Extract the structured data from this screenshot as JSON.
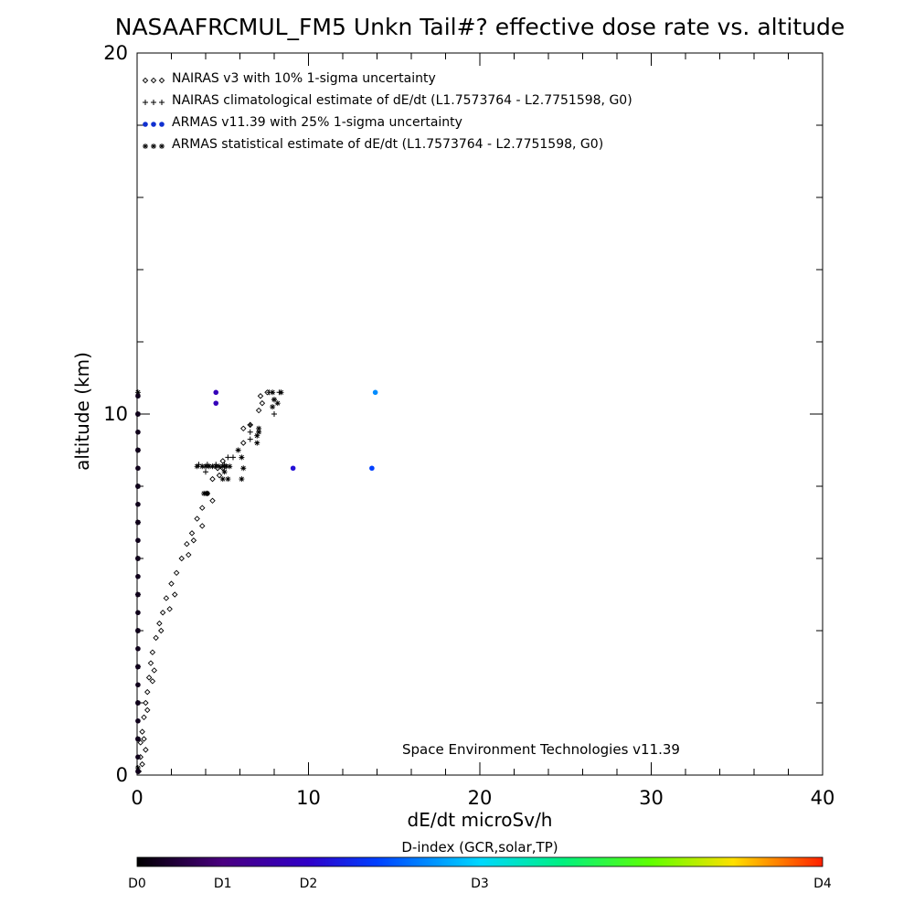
{
  "chart_data": {
    "type": "scatter",
    "title": "NASAAFRCMUL_FM5 Unkn Tail#? effective dose rate vs. altitude",
    "xlabel": "dE/dt microSv/h",
    "ylabel": "altitude (km)",
    "xlim": [
      0,
      40
    ],
    "ylim": [
      0,
      20
    ],
    "x_ticks": [
      "0",
      "10",
      "20",
      "30",
      "40"
    ],
    "y_ticks": [
      "0",
      "10",
      "20"
    ],
    "credit": "Space Environment Technologies v11.39",
    "legend": [
      {
        "marker": "diamond",
        "color": "#000000",
        "label": "NAIRAS v3 with 10% 1-sigma uncertainty"
      },
      {
        "marker": "plus",
        "color": "#000000",
        "label": "NAIRAS climatological estimate of dE/dt (L1.7573764 - L2.7751598, G0)"
      },
      {
        "marker": "dot",
        "color": "#1030d0",
        "label": "ARMAS v11.39 with 25% 1-sigma uncertainty"
      },
      {
        "marker": "star",
        "color": "#000000",
        "label": "ARMAS statistical estimate of dE/dt (L1.7573764 - L2.7751598, G0)"
      }
    ],
    "series": [
      {
        "name": "NAIRAS v3 with 10% 1-sigma uncertainty",
        "marker": "diamond",
        "points": [
          [
            0.1,
            0.1
          ],
          [
            0.2,
            0.5
          ],
          [
            0.2,
            0.9
          ],
          [
            0.3,
            1.2
          ],
          [
            0.4,
            1.6
          ],
          [
            0.5,
            2.0
          ],
          [
            0.6,
            2.3
          ],
          [
            0.7,
            2.7
          ],
          [
            0.8,
            3.1
          ],
          [
            0.9,
            3.4
          ],
          [
            1.1,
            3.8
          ],
          [
            1.3,
            4.2
          ],
          [
            1.5,
            4.5
          ],
          [
            1.7,
            4.9
          ],
          [
            2.0,
            5.3
          ],
          [
            2.3,
            5.6
          ],
          [
            2.6,
            6.0
          ],
          [
            2.9,
            6.4
          ],
          [
            3.2,
            6.7
          ],
          [
            3.5,
            7.1
          ],
          [
            3.8,
            7.4
          ],
          [
            4.1,
            7.8
          ],
          [
            4.4,
            8.2
          ],
          [
            4.7,
            8.5
          ],
          [
            5.0,
            8.7
          ],
          [
            6.2,
            9.2
          ],
          [
            6.2,
            9.6
          ],
          [
            7.1,
            10.1
          ],
          [
            7.2,
            10.5
          ],
          [
            7.6,
            10.6
          ],
          [
            0.3,
            0.3
          ],
          [
            0.4,
            1.0
          ],
          [
            0.6,
            1.8
          ],
          [
            1.0,
            2.9
          ],
          [
            1.4,
            4.0
          ],
          [
            2.2,
            5.0
          ],
          [
            3.0,
            6.1
          ],
          [
            3.8,
            6.9
          ],
          [
            4.4,
            7.6
          ],
          [
            5.0,
            8.5
          ],
          [
            0.5,
            0.7
          ],
          [
            0.9,
            2.6
          ],
          [
            1.9,
            4.6
          ],
          [
            3.3,
            6.5
          ],
          [
            4.8,
            8.3
          ],
          [
            6.6,
            9.7
          ],
          [
            7.3,
            10.3
          ]
        ]
      },
      {
        "name": "NAIRAS climatological estimate of dE/dt (L1.7573764 - L2.7751598, G0)",
        "marker": "plus",
        "points": [
          [
            3.6,
            8.6
          ],
          [
            4.1,
            8.6
          ],
          [
            4.6,
            8.6
          ],
          [
            5.1,
            8.6
          ],
          [
            5.3,
            8.8
          ],
          [
            6.6,
            9.3
          ],
          [
            6.6,
            9.5
          ],
          [
            6.6,
            9.7
          ],
          [
            8.0,
            10.0
          ],
          [
            8.0,
            10.4
          ],
          [
            8.3,
            10.6
          ],
          [
            7.7,
            10.6
          ],
          [
            5.6,
            8.8
          ],
          [
            4.0,
            8.4
          ]
        ]
      },
      {
        "name": "ARMAS statistical estimate of dE/dt (L1.7573764 - L2.7751598, G0)",
        "marker": "star",
        "points": [
          [
            3.5,
            8.55
          ],
          [
            3.8,
            8.55
          ],
          [
            4.0,
            8.55
          ],
          [
            4.2,
            8.55
          ],
          [
            4.4,
            8.55
          ],
          [
            4.6,
            8.55
          ],
          [
            4.8,
            8.55
          ],
          [
            5.0,
            8.55
          ],
          [
            5.2,
            8.55
          ],
          [
            5.4,
            8.55
          ],
          [
            3.9,
            7.8
          ],
          [
            4.0,
            7.8
          ],
          [
            4.1,
            7.8
          ],
          [
            5.0,
            8.2
          ],
          [
            5.3,
            8.2
          ],
          [
            5.1,
            8.4
          ],
          [
            6.1,
            8.2
          ],
          [
            6.2,
            8.5
          ],
          [
            6.1,
            8.8
          ],
          [
            5.9,
            9.0
          ],
          [
            7.0,
            9.4
          ],
          [
            7.1,
            9.5
          ],
          [
            7.1,
            9.6
          ],
          [
            7.0,
            9.2
          ],
          [
            7.9,
            10.2
          ],
          [
            8.2,
            10.3
          ],
          [
            8.4,
            10.6
          ],
          [
            7.9,
            10.6
          ],
          [
            8.0,
            10.4
          ],
          [
            0.05,
            0.2
          ],
          [
            0.05,
            1.0
          ],
          [
            0.05,
            2.0
          ],
          [
            0.05,
            3.0
          ],
          [
            0.05,
            4.0
          ],
          [
            0.05,
            5.0
          ],
          [
            0.05,
            6.0
          ],
          [
            0.05,
            7.0
          ],
          [
            0.05,
            8.0
          ],
          [
            0.05,
            9.0
          ],
          [
            0.05,
            10.0
          ],
          [
            0.05,
            10.6
          ]
        ]
      },
      {
        "name": "ARMAS v11.39 with 25% 1-sigma uncertainty",
        "marker": "dot",
        "points": [
          {
            "x": 4.6,
            "y": 10.6,
            "d": 0.9
          },
          {
            "x": 4.6,
            "y": 10.3,
            "d": 0.9
          },
          {
            "x": 9.1,
            "y": 8.5,
            "d": 1.1
          },
          {
            "x": 13.9,
            "y": 10.6,
            "d": 1.7
          },
          {
            "x": 13.7,
            "y": 8.5,
            "d": 1.4
          },
          {
            "x": 0.05,
            "y": 0.1,
            "d": 0.1
          },
          {
            "x": 0.05,
            "y": 0.5,
            "d": 0.1
          },
          {
            "x": 0.05,
            "y": 1.0,
            "d": 0.1
          },
          {
            "x": 0.05,
            "y": 1.5,
            "d": 0.1
          },
          {
            "x": 0.05,
            "y": 2.0,
            "d": 0.1
          },
          {
            "x": 0.05,
            "y": 2.5,
            "d": 0.1
          },
          {
            "x": 0.05,
            "y": 3.0,
            "d": 0.1
          },
          {
            "x": 0.05,
            "y": 3.5,
            "d": 0.1
          },
          {
            "x": 0.05,
            "y": 4.0,
            "d": 0.1
          },
          {
            "x": 0.05,
            "y": 4.5,
            "d": 0.1
          },
          {
            "x": 0.05,
            "y": 5.0,
            "d": 0.1
          },
          {
            "x": 0.05,
            "y": 5.5,
            "d": 0.1
          },
          {
            "x": 0.05,
            "y": 6.0,
            "d": 0.1
          },
          {
            "x": 0.05,
            "y": 6.5,
            "d": 0.1
          },
          {
            "x": 0.05,
            "y": 7.0,
            "d": 0.1
          },
          {
            "x": 0.05,
            "y": 7.5,
            "d": 0.1
          },
          {
            "x": 0.05,
            "y": 8.0,
            "d": 0.1
          },
          {
            "x": 0.05,
            "y": 8.5,
            "d": 0.1
          },
          {
            "x": 0.05,
            "y": 9.0,
            "d": 0.1
          },
          {
            "x": 0.05,
            "y": 9.5,
            "d": 0.1
          },
          {
            "x": 0.05,
            "y": 10.0,
            "d": 0.1
          },
          {
            "x": 0.05,
            "y": 10.5,
            "d": 0.1
          }
        ]
      }
    ],
    "colorbar": {
      "title": "D-index (GCR,solar,TP)",
      "range": [
        0,
        4
      ],
      "labels": [
        {
          "text": "D0",
          "value": 0
        },
        {
          "text": "D1",
          "value": 1
        },
        {
          "text": "D2",
          "value": 2
        },
        {
          "text": "D3",
          "value": 3
        },
        {
          "text": "D4",
          "value": 4
        }
      ],
      "stops": [
        {
          "at": 0.0,
          "color": "#000000"
        },
        {
          "at": 0.125,
          "color": "#4a0080"
        },
        {
          "at": 0.25,
          "color": "#3000c8"
        },
        {
          "at": 0.35,
          "color": "#0040ff"
        },
        {
          "at": 0.5,
          "color": "#00d8ff"
        },
        {
          "at": 0.62,
          "color": "#00f080"
        },
        {
          "at": 0.75,
          "color": "#60ff00"
        },
        {
          "at": 0.87,
          "color": "#ffe000"
        },
        {
          "at": 1.0,
          "color": "#ff2000"
        }
      ]
    }
  }
}
